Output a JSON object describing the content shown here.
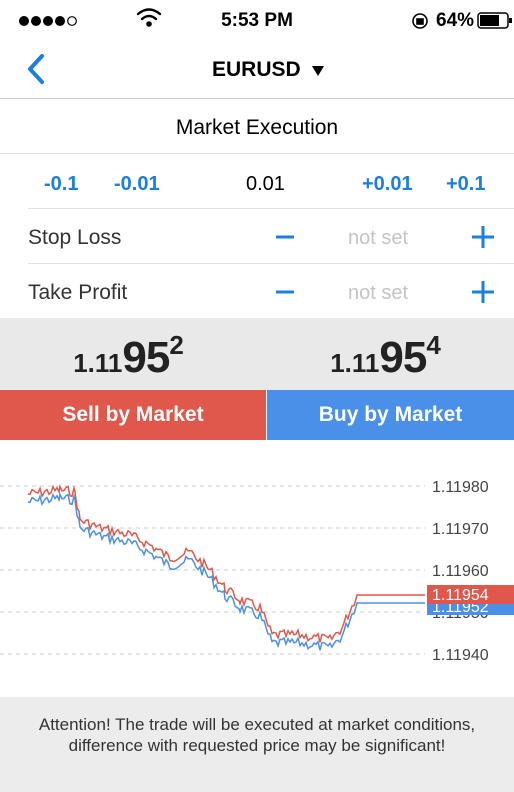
{
  "status_bar": {
    "time": "5:53 PM",
    "battery": "64%"
  },
  "nav": {
    "symbol": "EURUSD"
  },
  "execution": {
    "mode": "Market Execution"
  },
  "volume": {
    "minus_large": "-0.1",
    "minus_small": "-0.01",
    "value": "0.01",
    "plus_small": "+0.01",
    "plus_large": "+0.1"
  },
  "stop_loss": {
    "label": "Stop Loss",
    "value": "not set"
  },
  "take_profit": {
    "label": "Take Profit",
    "value": "not set"
  },
  "prices": {
    "bid": {
      "prefix": "1.11",
      "big": "95",
      "pip": "2"
    },
    "ask": {
      "prefix": "1.11",
      "big": "95",
      "pip": "4"
    }
  },
  "buttons": {
    "sell": "Sell by Market",
    "buy": "Buy by Market"
  },
  "chart": {
    "yticks": [
      "1.11980",
      "1.11970",
      "1.11960",
      "1.11950",
      "1.11940"
    ],
    "ask_label": "1.11954",
    "bid_label": "1.11952"
  },
  "notice": "Attention! The trade will be executed at market conditions, difference with requested price may be significant!"
}
